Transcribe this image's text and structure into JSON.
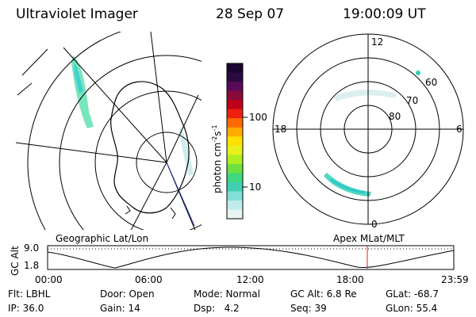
{
  "header": {
    "instrument": "Ultraviolet Imager",
    "date": "28 Sep 07",
    "time": "19:00:09 UT"
  },
  "colorbar": {
    "label": "photon cm",
    "label_sup1": "-2",
    "label_mid": "s",
    "label_sup2": "-1",
    "ticks": [
      "100",
      "10"
    ],
    "colors": [
      "#1a0530",
      "#2a0a40",
      "#5a0a5a",
      "#8a0a3a",
      "#c0001a",
      "#ee2010",
      "#ff6a00",
      "#ffaa00",
      "#ffe000",
      "#e8f020",
      "#b0ee20",
      "#70e040",
      "#40d880",
      "#40d0b0",
      "#80e0d8",
      "#c0ecec",
      "#e8f4f4"
    ]
  },
  "polar": {
    "labels": {
      "top": "12",
      "bottom": "0",
      "left": "18",
      "right": "6"
    },
    "lat_labels": [
      "60",
      "70",
      "80"
    ]
  },
  "timeline": {
    "axis_title": "GC Alt",
    "y_ticks": [
      "9.0",
      "1.8"
    ],
    "left_label": "Geographic Lat/Lon",
    "right_label": "Apex MLat/MLT",
    "x_ticks": [
      "00:00",
      "06:00",
      "12:00",
      "18:00",
      "23:59"
    ]
  },
  "info": {
    "flt": "Flt: LBHL",
    "door": "Door: Open",
    "mode": "Mode: Normal",
    "gcalt": "GC Alt: 6.8 Re",
    "glat": "GLat: -68.7",
    "ip": "IP: 36.0",
    "gain": "Gain: 14",
    "dsp_label": "Dsp:",
    "dsp_value": "4.2",
    "seq": "Seq: 39",
    "glon": "GLon:  55.4"
  }
}
